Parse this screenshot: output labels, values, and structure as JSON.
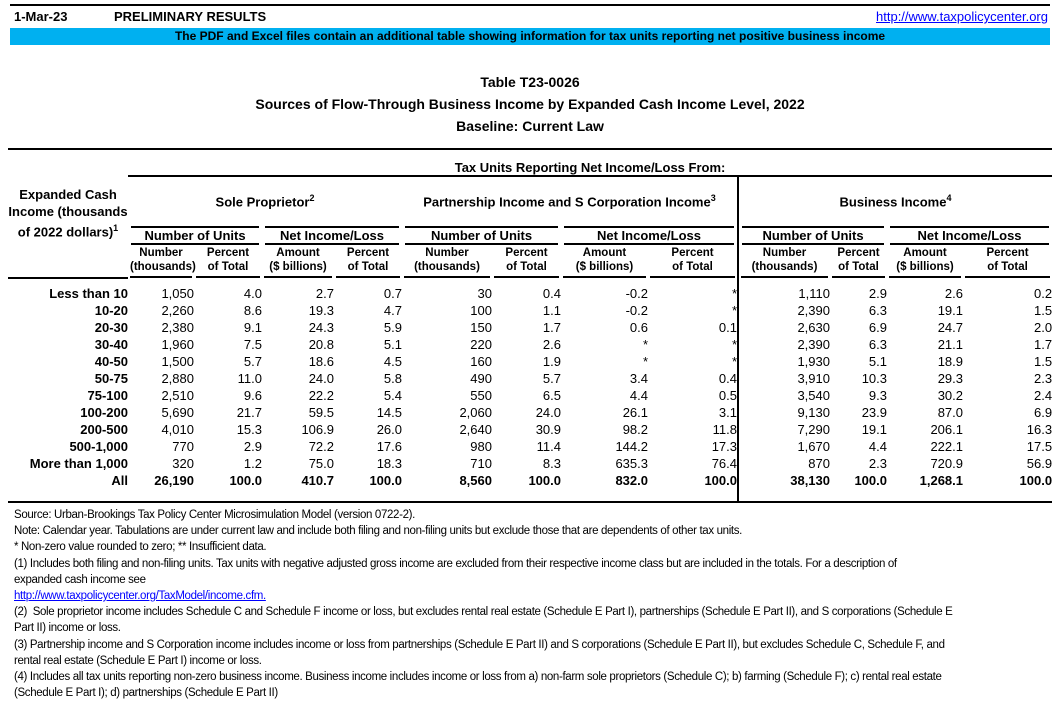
{
  "header": {
    "date": "1-Mar-23",
    "preliminary": "PRELIMINARY RESULTS",
    "url": "http://www.taxpolicycenter.org",
    "banner": "The PDF and Excel files contain an additional table showing information for tax units reporting net positive business income",
    "banner_color": "#00B0F0",
    "link_color": "#0000FF"
  },
  "title": {
    "line1": "Table T23-0026",
    "line2": "Sources of Flow-Through Business Income by Expanded Cash Income Level, 2022",
    "line3": "Baseline: Current Law"
  },
  "table": {
    "span_header": "Tax Units Reporting Net Income/Loss From:",
    "row_header": {
      "label": "Expanded Cash Income (thousands of 2022 dollars)",
      "sup": "1"
    },
    "groups": [
      {
        "label": "Sole Proprietor",
        "sup": "2"
      },
      {
        "label": "Partnership Income and S Corporation Income",
        "sup": "3"
      },
      {
        "label": "Business Income",
        "sup": "4"
      }
    ],
    "subgroups": [
      "Number of Units",
      "Net Income/Loss"
    ],
    "col_headers": [
      {
        "l1": "Number",
        "l2": "(thousands)"
      },
      {
        "l1": "Percent",
        "l2": "of Total"
      },
      {
        "l1": "Amount",
        "l2": "($ billions)"
      },
      {
        "l1": "Percent",
        "l2": "of Total"
      }
    ],
    "rows": [
      {
        "label": "Less than 10",
        "values": [
          "1,050",
          "4.0",
          "2.7",
          "0.7",
          "30",
          "0.4",
          "-0.2",
          "*",
          "1,110",
          "2.9",
          "2.6",
          "0.2"
        ]
      },
      {
        "label": "10-20",
        "values": [
          "2,260",
          "8.6",
          "19.3",
          "4.7",
          "100",
          "1.1",
          "-0.2",
          "*",
          "2,390",
          "6.3",
          "19.1",
          "1.5"
        ]
      },
      {
        "label": "20-30",
        "values": [
          "2,380",
          "9.1",
          "24.3",
          "5.9",
          "150",
          "1.7",
          "0.6",
          "0.1",
          "2,630",
          "6.9",
          "24.7",
          "2.0"
        ]
      },
      {
        "label": "30-40",
        "values": [
          "1,960",
          "7.5",
          "20.8",
          "5.1",
          "220",
          "2.6",
          "*",
          "*",
          "2,390",
          "6.3",
          "21.1",
          "1.7"
        ]
      },
      {
        "label": "40-50",
        "values": [
          "1,500",
          "5.7",
          "18.6",
          "4.5",
          "160",
          "1.9",
          "*",
          "*",
          "1,930",
          "5.1",
          "18.9",
          "1.5"
        ]
      },
      {
        "label": "50-75",
        "values": [
          "2,880",
          "11.0",
          "24.0",
          "5.8",
          "490",
          "5.7",
          "3.4",
          "0.4",
          "3,910",
          "10.3",
          "29.3",
          "2.3"
        ]
      },
      {
        "label": "75-100",
        "values": [
          "2,510",
          "9.6",
          "22.2",
          "5.4",
          "550",
          "6.5",
          "4.4",
          "0.5",
          "3,540",
          "9.3",
          "30.2",
          "2.4"
        ]
      },
      {
        "label": "100-200",
        "values": [
          "5,690",
          "21.7",
          "59.5",
          "14.5",
          "2,060",
          "24.0",
          "26.1",
          "3.1",
          "9,130",
          "23.9",
          "87.0",
          "6.9"
        ]
      },
      {
        "label": "200-500",
        "values": [
          "4,010",
          "15.3",
          "106.9",
          "26.0",
          "2,640",
          "30.9",
          "98.2",
          "11.8",
          "7,290",
          "19.1",
          "206.1",
          "16.3"
        ]
      },
      {
        "label": "500-1,000",
        "values": [
          "770",
          "2.9",
          "72.2",
          "17.6",
          "980",
          "11.4",
          "144.2",
          "17.3",
          "1,670",
          "4.4",
          "222.1",
          "17.5"
        ]
      },
      {
        "label": "More than 1,000",
        "values": [
          "320",
          "1.2",
          "75.0",
          "18.3",
          "710",
          "8.3",
          "635.3",
          "76.4",
          "870",
          "2.3",
          "720.9",
          "56.9"
        ]
      },
      {
        "label": "All",
        "values": [
          "26,190",
          "100.0",
          "410.7",
          "100.0",
          "8,560",
          "100.0",
          "832.0",
          "100.0",
          "38,130",
          "100.0",
          "1,268.1",
          "100.0"
        ],
        "bold": true
      }
    ]
  },
  "footnotes": [
    {
      "text": "Source: Urban-Brookings Tax Policy Center Microsimulation Model (version 0722-2)."
    },
    {
      "text": "Note: Calendar year. Tabulations are under current law and include both filing and non-filing units but exclude those that are dependents of other tax units."
    },
    {
      "text": "* Non-zero value rounded to zero; ** Insufficient data."
    },
    {
      "text": "(1) Includes both filing and non-filing units. Tax units with negative adjusted gross income are excluded from their respective income class but are included in the totals. For a description of\nexpanded cash income see"
    },
    {
      "text": "http://www.taxpolicycenter.org/TaxModel/income.cfm.",
      "link": true
    },
    {
      "text": "(2)  Sole proprietor income includes Schedule C and Schedule F income or loss, but excludes rental real estate (Schedule E Part I), partnerships (Schedule E Part II), and S corporations (Schedule E\nPart II) income or loss."
    },
    {
      "text": "(3) Partnership income and S Corporation income includes income or loss from partnerships (Schedule E Part II) and S corporations (Schedule E Part II), but excludes Schedule C, Schedule F, and\nrental real estate (Schedule E Part I) income or loss."
    },
    {
      "text": "(4) Includes all tax units reporting non-zero business income. Business income includes income or loss from a) non-farm sole proprietors (Schedule C); b) farming (Schedule F); c) rental real estate\n(Schedule E Part I); d) partnerships (Schedule E Part II)"
    }
  ]
}
